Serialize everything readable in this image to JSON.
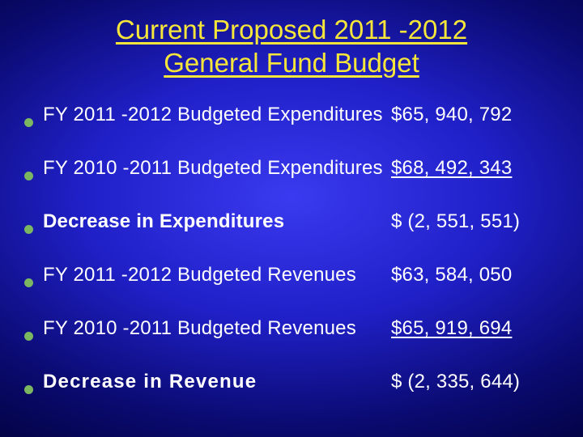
{
  "title_line1": "Current Proposed 2011 -2012",
  "title_line2": "General Fund Budget",
  "bullet_color": "#7bb661",
  "rows": [
    {
      "label": "FY 2011 -2012 Budgeted Expenditures",
      "value": "$65, 940, 792",
      "label_bold": false,
      "label_spaced": false,
      "value_underline": false
    },
    {
      "label": "FY 2010 -2011 Budgeted Expenditures",
      "value": "$68, 492, 343",
      "label_bold": false,
      "label_spaced": false,
      "value_underline": true
    },
    {
      "label": "Decrease in Expenditures",
      "value": "$ (2, 551, 551)",
      "label_bold": true,
      "label_spaced": false,
      "value_underline": false
    },
    {
      "label": "FY 2011 -2012 Budgeted Revenues",
      "value": "$63, 584, 050",
      "label_bold": false,
      "label_spaced": false,
      "value_underline": false
    },
    {
      "label": "FY 2010 -2011 Budgeted Revenues",
      "value": "$65, 919, 694",
      "label_bold": false,
      "label_spaced": false,
      "value_underline": true
    },
    {
      "label": "Decrease in Revenue",
      "value": "$ (2, 335, 644)",
      "label_bold": true,
      "label_spaced": true,
      "value_underline": false
    }
  ],
  "text_color": "#ffffff",
  "title_color": "#f7e63a",
  "font_size_title": 33,
  "font_size_body": 24
}
